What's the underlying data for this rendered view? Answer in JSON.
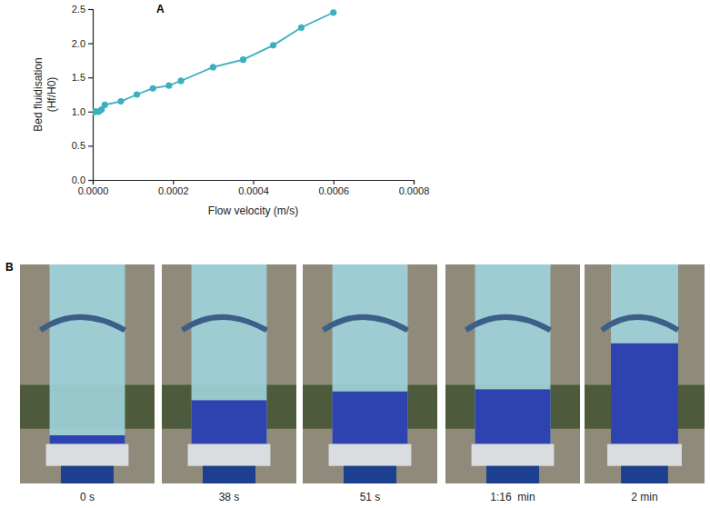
{
  "chart_data": {
    "type": "line",
    "panel_label": "A",
    "xlabel": "Flow velocity (m/s)",
    "ylabel": [
      "Bed fluidisation",
      "(Hf/H0)"
    ],
    "x": [
      0,
      4e-06,
      8e-06,
      1.5e-05,
      2.2e-05,
      3e-05,
      7e-05,
      0.00011,
      0.00015,
      0.00019,
      0.00022,
      0.0003,
      0.000375,
      0.00045,
      0.00052,
      0.0006
    ],
    "values": [
      1.0,
      1.0,
      1.0,
      1.0,
      1.03,
      1.1,
      1.15,
      1.25,
      1.34,
      1.38,
      1.45,
      1.65,
      1.76,
      1.97,
      2.23,
      2.45
    ],
    "color": "#3cafc0",
    "marker": "circle",
    "xlim": [
      0,
      0.0008
    ],
    "xticks": [
      {
        "value": 0,
        "label": "0.0000"
      },
      {
        "value": 0.0002,
        "label": "0.0002"
      },
      {
        "value": 0.0004,
        "label": "0.0004"
      },
      {
        "value": 0.0006,
        "label": "0.0006"
      },
      {
        "value": 0.0008,
        "label": "0.0008"
      }
    ],
    "ylim": [
      0,
      2.5
    ],
    "yticks": [
      {
        "value": 0,
        "label": "0.0"
      },
      0.5,
      {
        "value": 1,
        "label": "1.0"
      },
      1.5,
      {
        "value": 2,
        "label": "2.0"
      },
      2.5
    ]
  },
  "photo_panel": {
    "label": "B",
    "captions": [
      "0 s",
      "38 s",
      "51 s",
      "1:16  min",
      "2 min"
    ]
  }
}
